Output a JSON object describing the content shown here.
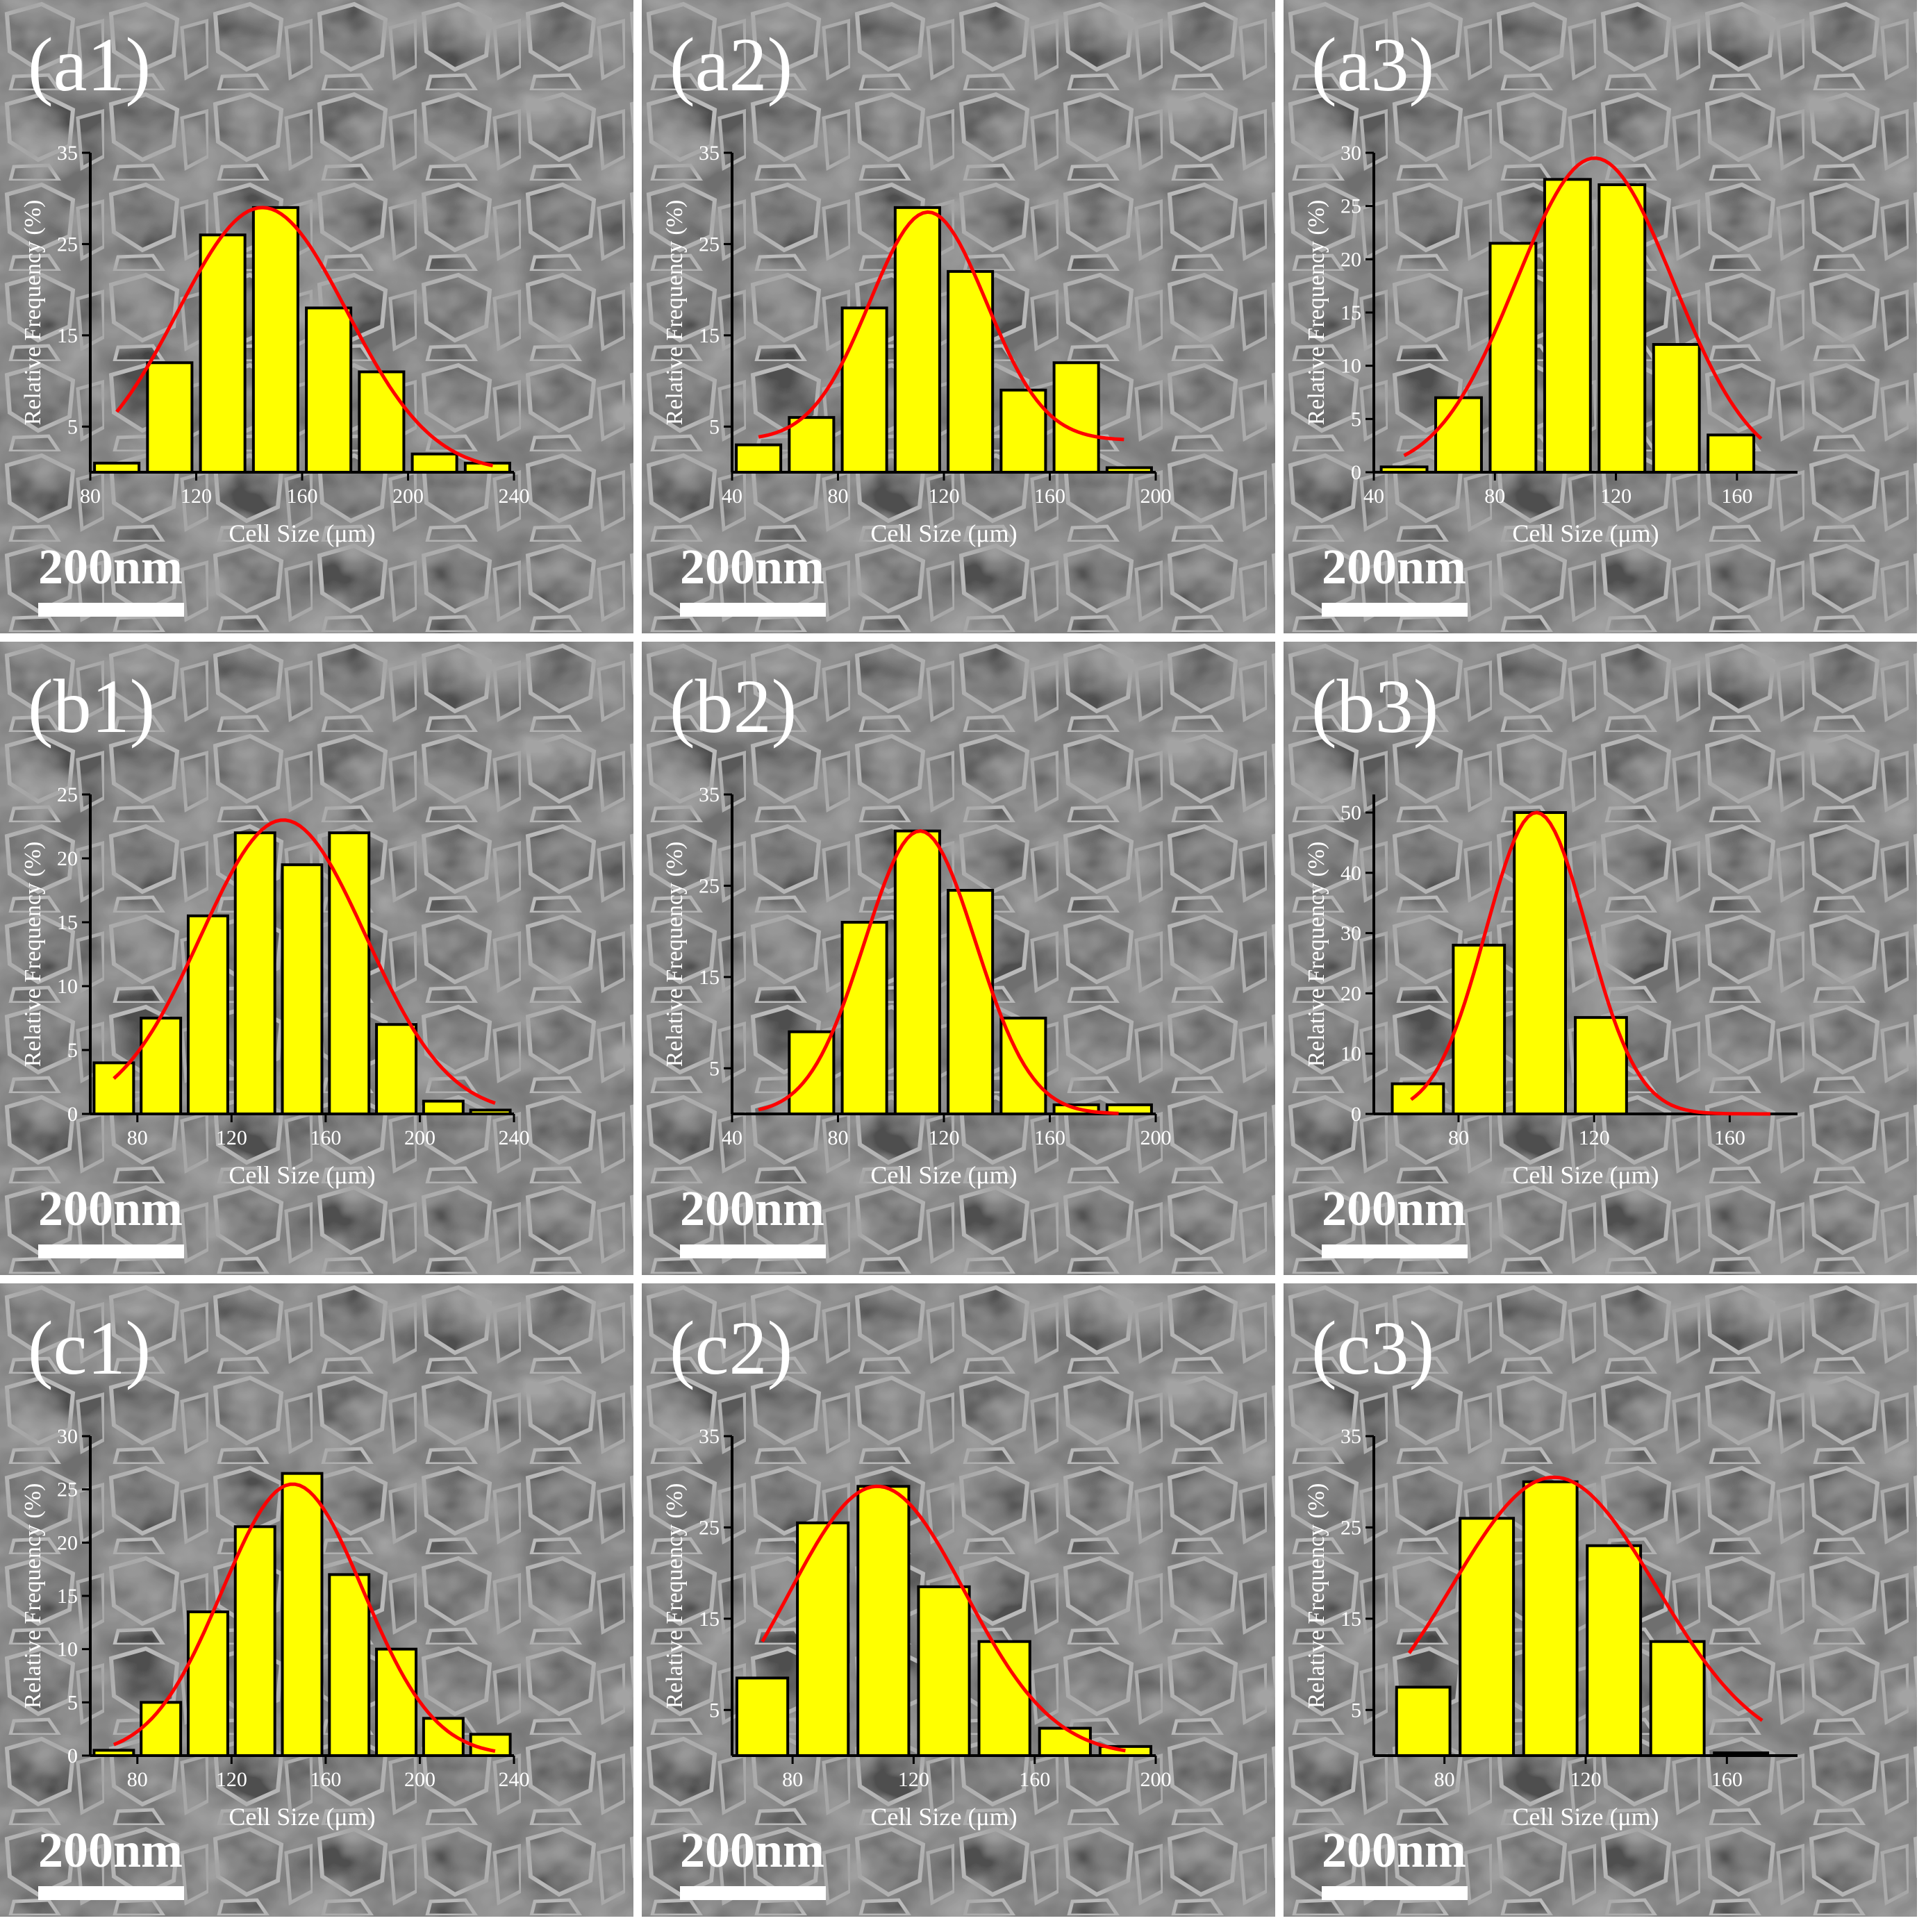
{
  "colors": {
    "bar_fill": "#ffff00",
    "bar_stroke": "#000000",
    "fit_curve": "#ff0000",
    "overlay_text": "#ffffff",
    "sem_background": "#6b6b6b"
  },
  "chart_data": [
    {
      "panel": "(a1)",
      "type": "bar",
      "scale_bar": "200nm",
      "xlabel": "Cell Size (μm)",
      "ylabel": "Relative Frequency (%)",
      "xlim": [
        80,
        240
      ],
      "ylim": [
        0,
        35
      ],
      "xticks": [
        80,
        120,
        160,
        200,
        240
      ],
      "yticks": [
        5,
        15,
        25,
        35
      ],
      "bin_width": 20,
      "x": [
        90,
        110,
        130,
        150,
        170,
        190,
        210,
        230
      ],
      "values": [
        1,
        12,
        26,
        29,
        18,
        11,
        2,
        1
      ],
      "fit": {
        "mean": 145,
        "sd": 32,
        "peak": 29,
        "range": [
          90,
          232
        ]
      }
    },
    {
      "panel": "(a2)",
      "type": "bar",
      "scale_bar": "200nm",
      "xlabel": "Cell Size (μm)",
      "ylabel": "Relative Frequency (%)",
      "xlim": [
        40,
        200
      ],
      "ylim": [
        0,
        35
      ],
      "xticks": [
        40,
        80,
        120,
        160,
        200
      ],
      "yticks": [
        5,
        15,
        25,
        35
      ],
      "bin_width": 20,
      "x": [
        50,
        70,
        90,
        110,
        130,
        150,
        170,
        190
      ],
      "values": [
        3,
        6,
        18,
        29,
        22,
        9,
        12,
        0.5
      ],
      "fit": {
        "mean": 114,
        "sd": 22,
        "peak": 28.5,
        "baseline": 3.5,
        "range": [
          50,
          188
        ]
      }
    },
    {
      "panel": "(a3)",
      "type": "bar",
      "scale_bar": "200nm",
      "xlabel": "Cell Size (μm)",
      "ylabel": "Relative Frequency (%)",
      "xlim": [
        40,
        180
      ],
      "ylim": [
        0,
        30
      ],
      "xticks": [
        40,
        80,
        120,
        160
      ],
      "yticks": [
        0,
        5,
        10,
        15,
        20,
        25,
        30
      ],
      "bin_width": 18,
      "x": [
        50,
        68,
        86,
        104,
        122,
        140,
        158
      ],
      "values": [
        0.5,
        7,
        21.5,
        27.5,
        27,
        12,
        3.5
      ],
      "fit": {
        "mean": 113,
        "sd": 26,
        "peak": 29.5,
        "range": [
          50,
          168
        ]
      }
    },
    {
      "panel": "(b1)",
      "type": "bar",
      "scale_bar": "200nm",
      "xlabel": "Cell Size (μm)",
      "ylabel": "Relative Frequency (%)",
      "xlim": [
        60,
        240
      ],
      "ylim": [
        0,
        25
      ],
      "xticks": [
        80,
        120,
        160,
        200,
        240
      ],
      "yticks": [
        0,
        5,
        10,
        15,
        20,
        25
      ],
      "bin_width": 20,
      "x": [
        70,
        90,
        110,
        130,
        150,
        170,
        190,
        210,
        230
      ],
      "values": [
        4,
        7.5,
        15.5,
        22,
        19.5,
        22,
        7,
        1,
        0.3
      ],
      "fit": {
        "mean": 142,
        "sd": 35,
        "peak": 23,
        "range": [
          70,
          232
        ]
      }
    },
    {
      "panel": "(b2)",
      "type": "bar",
      "scale_bar": "200nm",
      "xlabel": "Cell Size (μm)",
      "ylabel": "Relative Frequency (%)",
      "xlim": [
        40,
        200
      ],
      "ylim": [
        0,
        35
      ],
      "xticks": [
        40,
        80,
        120,
        160,
        200
      ],
      "yticks": [
        5,
        15,
        25,
        35
      ],
      "bin_width": 20,
      "x": [
        70,
        90,
        110,
        130,
        150,
        170,
        190
      ],
      "values": [
        9,
        21,
        31,
        24.5,
        10.5,
        1,
        1
      ],
      "fit": {
        "mean": 111,
        "sd": 21,
        "peak": 31,
        "range": [
          50,
          186
        ]
      }
    },
    {
      "panel": "(b3)",
      "type": "bar",
      "scale_bar": "200nm",
      "xlabel": "Cell Size (μm)",
      "ylabel": "Relative Frequency (%)",
      "xlim": [
        55,
        180
      ],
      "ylim": [
        0,
        53
      ],
      "xticks": [
        80,
        120,
        160
      ],
      "yticks": [
        0,
        10,
        20,
        30,
        40,
        50
      ],
      "bin_width": 18,
      "x": [
        68,
        86,
        104,
        122
      ],
      "values": [
        5,
        28,
        50,
        16
      ],
      "fit": {
        "mean": 103,
        "sd": 15,
        "peak": 50,
        "range": [
          66,
          172
        ]
      }
    },
    {
      "panel": "(c1)",
      "type": "bar",
      "scale_bar": "200nm",
      "xlabel": "Cell Size (μm)",
      "ylabel": "Relative Frequency (%)",
      "xlim": [
        60,
        240
      ],
      "ylim": [
        0,
        30
      ],
      "xticks": [
        80,
        120,
        160,
        200,
        240
      ],
      "yticks": [
        0,
        5,
        10,
        15,
        20,
        25,
        30
      ],
      "bin_width": 20,
      "x": [
        70,
        90,
        110,
        130,
        150,
        170,
        190,
        210,
        230
      ],
      "values": [
        0.5,
        5,
        13.5,
        21.5,
        26.5,
        17,
        10,
        3.5,
        2
      ],
      "fit": {
        "mean": 146,
        "sd": 30,
        "peak": 25.5,
        "range": [
          70,
          232
        ]
      }
    },
    {
      "panel": "(c2)",
      "type": "bar",
      "scale_bar": "200nm",
      "xlabel": "Cell Size (μm)",
      "ylabel": "Relative Frequency (%)",
      "xlim": [
        60,
        200
      ],
      "ylim": [
        0,
        35
      ],
      "xticks": [
        80,
        120,
        160,
        200
      ],
      "yticks": [
        5,
        15,
        25,
        35
      ],
      "bin_width": 20,
      "x": [
        70,
        90,
        110,
        130,
        150,
        170,
        190
      ],
      "values": [
        8.5,
        25.5,
        29.5,
        18.5,
        12.5,
        3,
        1
      ],
      "fit": {
        "mean": 108,
        "sd": 29,
        "peak": 29.5,
        "range": [
          70,
          190
        ]
      }
    },
    {
      "panel": "(c3)",
      "type": "bar",
      "scale_bar": "200nm",
      "xlabel": "Cell Size (μm)",
      "ylabel": "Relative Frequency (%)",
      "xlim": [
        60,
        180
      ],
      "ylim": [
        0,
        35
      ],
      "xticks": [
        80,
        120,
        160
      ],
      "yticks": [
        5,
        15,
        25,
        35
      ],
      "bin_width": 18,
      "x": [
        74,
        92,
        110,
        128,
        146,
        164
      ],
      "values": [
        7.5,
        26,
        30,
        23,
        12.5,
        0.3
      ],
      "fit": {
        "mean": 111,
        "sd": 29,
        "peak": 30.5,
        "range": [
          70,
          170
        ]
      }
    }
  ]
}
